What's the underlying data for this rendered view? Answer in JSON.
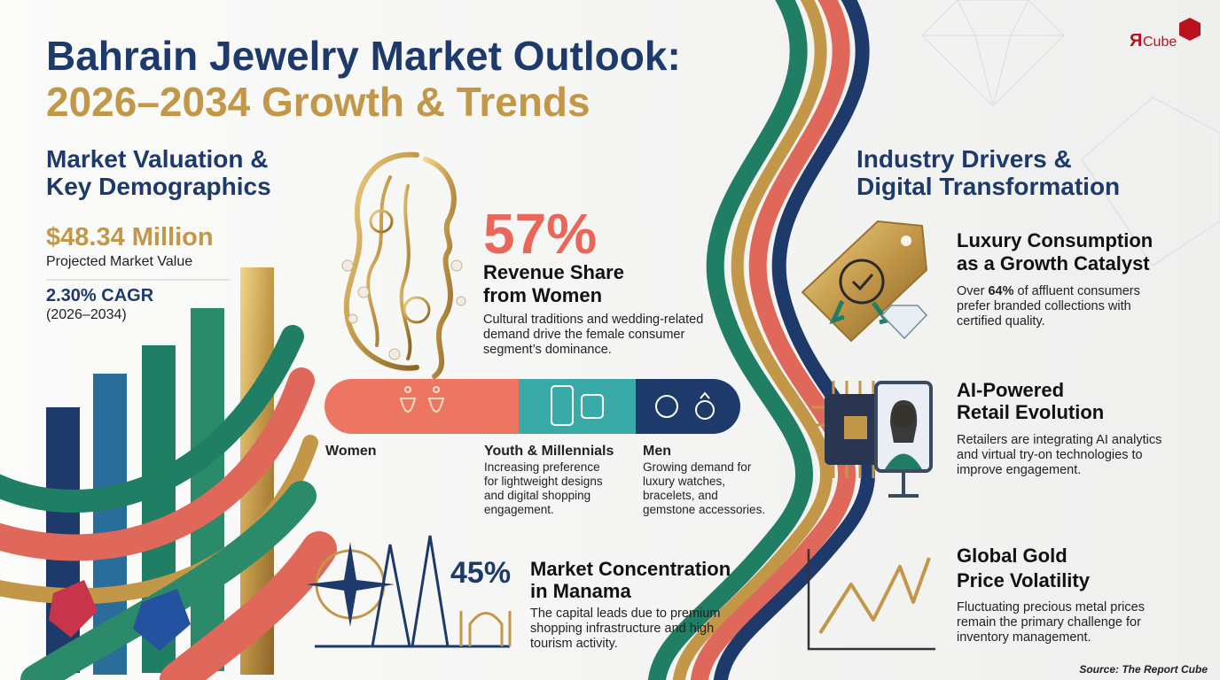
{
  "header": {
    "title_line1": "Bahrain Jewelry Market Outlook:",
    "title_line2": "2026–2034 Growth & Trends"
  },
  "logo": {
    "mark": "Я",
    "text": "Cube"
  },
  "market": {
    "heading": [
      "Market Valuation &",
      "Key Demographics"
    ],
    "value": "$48.34 Million",
    "value_label": "Projected Market Value",
    "cagr": "2.30% CAGR",
    "period": "(2026–2034)"
  },
  "women": {
    "share": "57%",
    "title": [
      "Revenue Share",
      "from Women"
    ],
    "body": [
      "Cultural traditions and wedding-related",
      "demand drive the female consumer",
      "segment’s dominance."
    ]
  },
  "segments": [
    {
      "name": "Women"
    },
    {
      "name": "Youth & Millennials",
      "body": [
        "Increasing preference",
        "for lightweight designs",
        "and digital shopping",
        "engagement."
      ]
    },
    {
      "name": "Men",
      "body": [
        "Growing demand for",
        "luxury watches,",
        "bracelets, and",
        "gemstone accessories."
      ]
    }
  ],
  "manama": {
    "share": "45%",
    "title": [
      "Market Concentration",
      "in Manama"
    ],
    "body": [
      "The capital leads due to premium",
      "shopping infrastructure and high",
      "tourism activity."
    ]
  },
  "drivers": {
    "heading": [
      "Industry Drivers &",
      "Digital Transformation"
    ],
    "items": [
      {
        "title": [
          "Luxury Consumption",
          "as a Growth Catalyst"
        ],
        "body_parts": [
          "Over ",
          "64%",
          " of affluent consumers"
        ],
        "body": [
          "prefer branded collections with",
          "certified quality."
        ]
      },
      {
        "title": [
          "AI-Powered",
          "Retail Evolution"
        ],
        "body": [
          "Retailers are integrating AI analytics",
          "and virtual try-on technologies to",
          "improve engagement."
        ]
      },
      {
        "title": [
          "Global Gold",
          "Price Volatility"
        ],
        "body": [
          "Fluctuating precious metal prices",
          "remain the primary challenge for",
          "inventory management."
        ]
      }
    ]
  },
  "source": "Source: The Report Cube"
}
